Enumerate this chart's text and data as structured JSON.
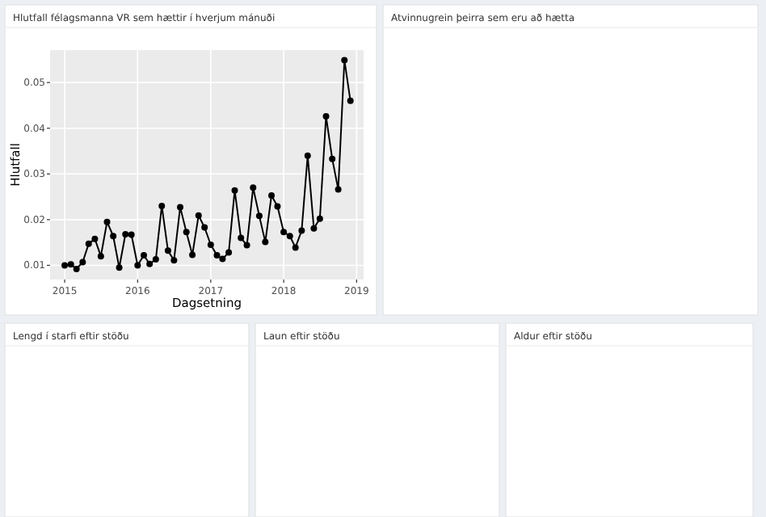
{
  "chart_data": [
    {
      "type": "line",
      "title": "Hlutfall félagsmanna VR sem hættir í hverjum mánuði",
      "xlabel": "Dagsetning",
      "ylabel": "Hlutfall",
      "x": [
        "2015-01",
        "2015-02",
        "2015-03",
        "2015-04",
        "2015-05",
        "2015-06",
        "2015-07",
        "2015-08",
        "2015-09",
        "2015-10",
        "2015-11",
        "2015-12",
        "2016-01",
        "2016-02",
        "2016-03",
        "2016-04",
        "2016-05",
        "2016-06",
        "2016-07",
        "2016-08",
        "2016-09",
        "2016-10",
        "2016-11",
        "2016-12",
        "2017-01",
        "2017-02",
        "2017-03",
        "2017-04",
        "2017-05",
        "2017-06",
        "2017-07",
        "2017-08",
        "2017-09",
        "2017-10",
        "2017-11",
        "2017-12",
        "2018-01",
        "2018-02",
        "2018-03",
        "2018-04",
        "2018-05",
        "2018-06",
        "2018-07",
        "2018-08",
        "2018-09",
        "2018-10",
        "2018-11",
        "2018-12"
      ],
      "series": [
        {
          "color": "#000000",
          "values": [
            0.01,
            0.0102,
            0.0092,
            0.0107,
            0.0147,
            0.0158,
            0.012,
            0.0195,
            0.0164,
            0.0095,
            0.0168,
            0.0167,
            0.01,
            0.0122,
            0.0103,
            0.0113,
            0.023,
            0.0132,
            0.0111,
            0.0227,
            0.0173,
            0.0123,
            0.0209,
            0.0183,
            0.0145,
            0.0122,
            0.0114,
            0.0128,
            0.0264,
            0.016,
            0.0144,
            0.027,
            0.0208,
            0.0151,
            0.0253,
            0.0229,
            0.0173,
            0.0164,
            0.0139,
            0.0176,
            0.034,
            0.0181,
            0.0202,
            0.0426,
            0.0333,
            0.0266,
            0.0549,
            0.046
          ]
        }
      ],
      "xlim": [
        "2014-10-20",
        "2019-02-05"
      ],
      "xticks": [
        "2015",
        "2016",
        "2017",
        "2018",
        "2019"
      ],
      "ylim": [
        0.0069,
        0.0571
      ],
      "yticks": [
        0.01,
        0.02,
        0.03,
        0.04,
        0.05
      ],
      "grid": true,
      "marker": "circle",
      "line_style": "solid"
    },
    {
      "type": "other",
      "title": "Atvinnugrein þeirra sem eru að hætta"
    },
    {
      "type": "other",
      "title": "Lengd í starfi eftir stöðu"
    },
    {
      "type": "other",
      "title": "Laun eftir stöðu"
    },
    {
      "type": "other",
      "title": "Aldur eftir stöðu"
    }
  ]
}
